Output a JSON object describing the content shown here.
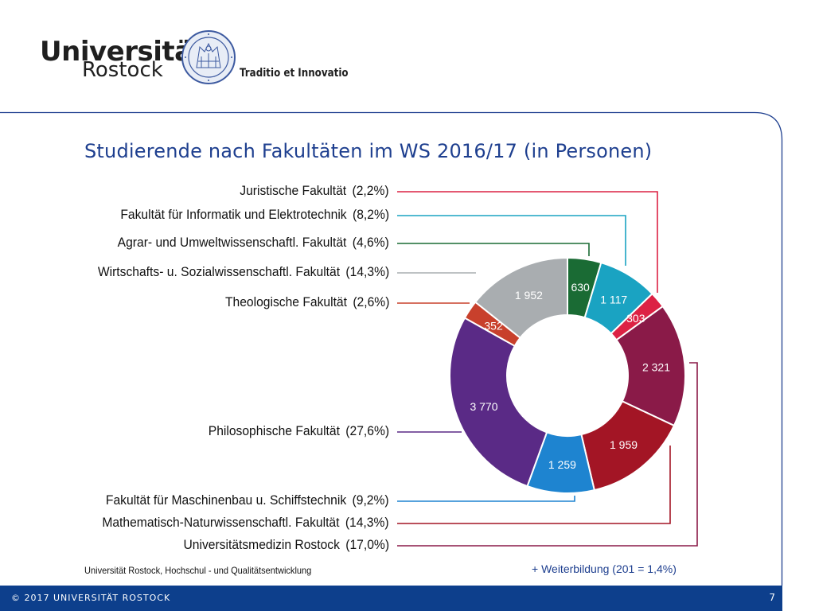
{
  "header": {
    "university_line1": "Universität",
    "university_line2": "Rostock",
    "motto": "Traditio et Innovatio"
  },
  "colors": {
    "brand_blue": "#1e3f8f",
    "footer_blue": "#0d3f8c"
  },
  "chart_data": {
    "type": "pie",
    "variant": "donut",
    "title": "Studierende nach Fakultäten im WS 2016/17 (in Personen)",
    "slices": [
      {
        "name": "Agrar- und Umweltwissenschaftl. Fakultät",
        "value": 630,
        "label": "630",
        "percent_label": "(4,6%)",
        "color": "#1a6b34"
      },
      {
        "name": "Fakultät für Informatik und Elektrotechnik",
        "value": 1117,
        "label": "1 117",
        "percent_label": "(8,2%)",
        "color": "#1aa3c2"
      },
      {
        "name": "Juristische Fakultät",
        "value": 303,
        "label": "303",
        "percent_label": "(2,2%)",
        "color": "#dc2244"
      },
      {
        "name": "Universitätsmedizin Rostock",
        "value": 2321,
        "label": "2 321",
        "percent_label": "(17,0%)",
        "color": "#8a1a48"
      },
      {
        "name": "Mathematisch-Naturwissenschaftl. Fakultät",
        "value": 1959,
        "label": "1 959",
        "percent_label": "(14,3%)",
        "color": "#a31525"
      },
      {
        "name": "Fakultät für Maschinenbau u. Schiffstechnik",
        "value": 1259,
        "label": "1 259",
        "percent_label": "(9,2%)",
        "color": "#1e84d0"
      },
      {
        "name": "Philosophische Fakultät",
        "value": 3770,
        "label": "3 770",
        "percent_label": "(27,6%)",
        "color": "#5a2a86"
      },
      {
        "name": "Theologische Fakultät",
        "value": 352,
        "label": "352",
        "percent_label": "(2,6%)",
        "color": "#c8402c"
      },
      {
        "name": "Wirtschafts- u. Sozialwissenschaftl. Fakultät",
        "value": 1952,
        "label": "1 952",
        "percent_label": "(14,3%)",
        "color": "#a9adb0"
      }
    ],
    "legend_order": [
      2,
      1,
      0,
      8,
      7,
      6,
      5,
      4,
      3
    ]
  },
  "source_note": "Universität Rostock, Hochschul - und Qualitätsentwicklung",
  "extra_note": "+ Weiterbildung (201 = 1,4%)",
  "footer": {
    "copyright": "© 2017 UNIVERSITÄT ROSTOCK",
    "page_number": "7"
  }
}
